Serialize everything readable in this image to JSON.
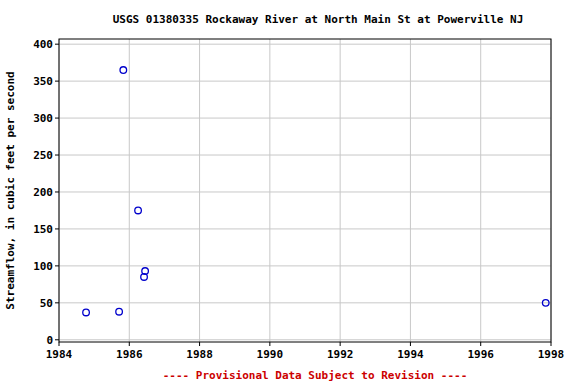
{
  "chart_data": {
    "type": "scatter",
    "title": "USGS 01380335 Rockaway River at North Main St at Powerville NJ",
    "y_label": "Streamflow, in cubic feet per second",
    "footer": "---- Provisional Data Subject to Revision ----",
    "x": [
      1984.77,
      1985.71,
      1985.83,
      1986.25,
      1986.45,
      1986.42,
      1997.85
    ],
    "values": [
      37,
      38,
      365,
      175,
      93,
      85,
      50
    ],
    "color": "#0000cc",
    "marker": "hollow-circle",
    "xlim": [
      1984,
      1998
    ],
    "xticks": [
      1984,
      1986,
      1988,
      1990,
      1992,
      1994,
      1996,
      1998
    ],
    "ylim": [
      -3,
      407
    ],
    "yticks": [
      0,
      50,
      100,
      150,
      200,
      250,
      300,
      350,
      400
    ],
    "grid": true
  }
}
